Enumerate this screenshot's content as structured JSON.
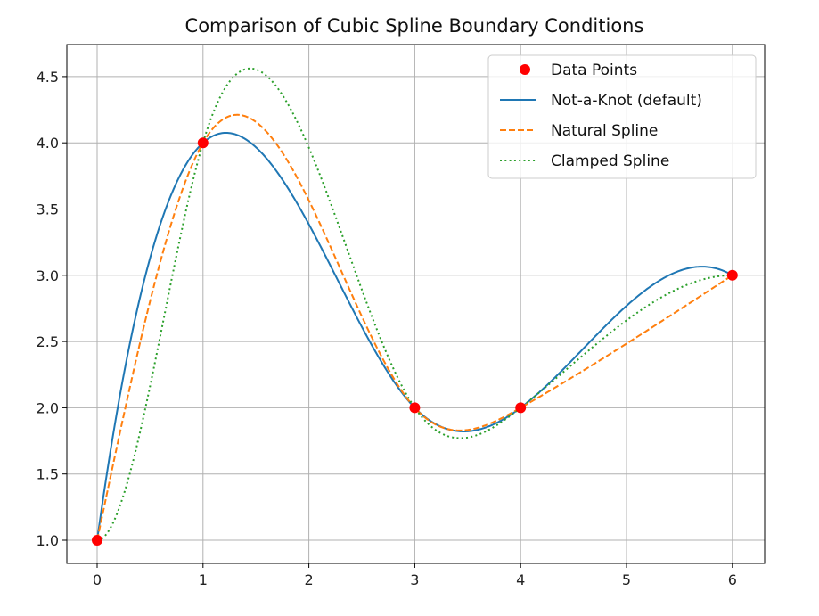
{
  "chart_data": {
    "type": "line",
    "title": "Comparison of Cubic Spline Boundary Conditions",
    "xlabel": "",
    "ylabel": "",
    "xlim": [
      -0.3,
      6.3
    ],
    "ylim": [
      0.85,
      4.7
    ],
    "grid": true,
    "legend_position": "top-right",
    "x_ticks": [
      0,
      1,
      2,
      3,
      4,
      5,
      6
    ],
    "x_tick_labels": [
      "0",
      "1",
      "2",
      "3",
      "4",
      "5",
      "6"
    ],
    "y_ticks": [
      1.0,
      1.5,
      2.0,
      2.5,
      3.0,
      3.5,
      4.0,
      4.5
    ],
    "y_tick_labels": [
      "1.0",
      "1.5",
      "2.0",
      "2.5",
      "3.0",
      "3.5",
      "4.0",
      "4.5"
    ],
    "points": {
      "name": "Data Points",
      "x": [
        0,
        1,
        3,
        4,
        6
      ],
      "y": [
        1,
        4,
        2,
        2,
        3
      ],
      "color": "#ff0000"
    },
    "series": [
      {
        "name": "Not-a-Knot (default)",
        "bc": "not-a-knot",
        "color": "#1f77b4",
        "style": "solid"
      },
      {
        "name": "Natural Spline",
        "bc": "natural",
        "color": "#ff7f0e",
        "style": "dashed"
      },
      {
        "name": "Clamped Spline",
        "bc": "clamped",
        "end_slopes": [
          0,
          0
        ],
        "color": "#2ca02c",
        "style": "dotted"
      }
    ]
  }
}
